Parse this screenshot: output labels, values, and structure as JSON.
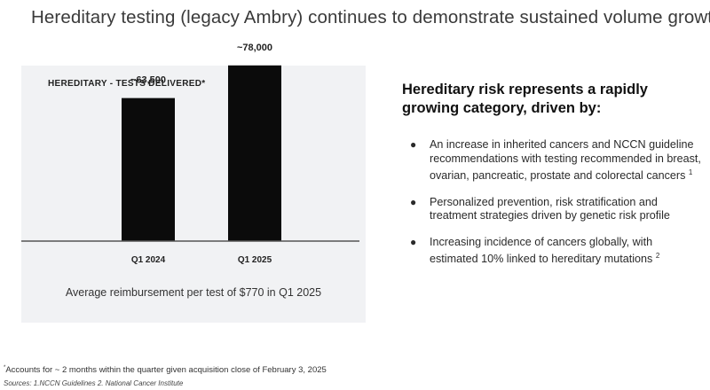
{
  "slide_title": "Hereditary testing (legacy Ambry) continues to demonstrate sustained volume growth",
  "chart_data": {
    "type": "bar",
    "title": "HEREDITARY - TESTS DELIVERED*",
    "categories": [
      "Q1 2024",
      "Q1 2025"
    ],
    "values": [
      63500,
      78000
    ],
    "data_labels": [
      "~63,500",
      "~78,000"
    ],
    "xlabel": "",
    "ylabel": "",
    "ylim": [
      0,
      85000
    ],
    "grid": false,
    "colors": {
      "bar": "#0b0b0b",
      "baseline": "#555555"
    }
  },
  "caption": "Average reimbursement per test of $770 in Q1 2025",
  "right": {
    "heading": "Hereditary risk represents a rapidly growing category, driven by:",
    "bullets": [
      {
        "text": "An increase in inherited cancers and NCCN guideline recommendations with testing recommended in breast, ovarian, pancreatic, prostate and colorectal cancers",
        "ref": "1"
      },
      {
        "text": "Personalized prevention, risk stratification and treatment strategies driven by genetic risk profile",
        "ref": ""
      },
      {
        "text": "Increasing incidence of cancers globally, with estimated 10% linked to hereditary mutations",
        "ref": "2"
      }
    ]
  },
  "footnote": {
    "marker": "*",
    "text": "Accounts for ~ 2 months within the quarter given acquisition close of February 3, 2025"
  },
  "sources": "Sources: 1.NCCN Guidelines 2. National Cancer Institute"
}
